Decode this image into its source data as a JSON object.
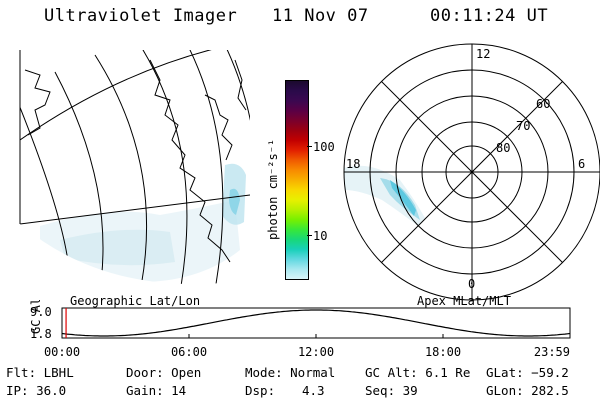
{
  "header": {
    "instrument": "Ultraviolet Imager",
    "date": "11 Nov 07",
    "time": "00:11:24 UT"
  },
  "geo_map": {
    "label": "Geographic Lat/Lon"
  },
  "colorbar": {
    "unit_label": "photon cm⁻²s⁻¹",
    "tick_100": "100",
    "tick_10": "10",
    "colors": [
      "#1b0a2e",
      "#2a0a4a",
      "#3b0850",
      "#5a0045",
      "#7a002c",
      "#9c0010",
      "#c20000",
      "#e22000",
      "#f05a00",
      "#f88a00",
      "#f8b000",
      "#f8d800",
      "#e8f000",
      "#b8f000",
      "#78f000",
      "#38e838",
      "#18d878",
      "#18d0b8",
      "#60d8e0",
      "#a8e8f0",
      "#d8f4f8"
    ]
  },
  "polar": {
    "label": "Apex MLat/MLT",
    "mlt_12": "12",
    "mlt_18": "18",
    "mlt_6": "6",
    "mlt_0": "0",
    "lat_60": "60",
    "lat_70": "70",
    "lat_80": "80"
  },
  "altitude_plot": {
    "ylabel": "GC Alt",
    "y_max": "9.0",
    "y_min": "1.8",
    "x_ticks": [
      "00:00",
      "06:00",
      "12:00",
      "18:00",
      "23:59"
    ],
    "current_time_fraction": 0.008
  },
  "footer": {
    "filter": "Flt: LBHL",
    "ip": "IP: 36.0",
    "door": "Door: Open",
    "gain": "Gain: 14",
    "mode": "Mode: Normal",
    "dsp_label": "Dsp:",
    "dsp_value": "4.3",
    "gc_alt": "GC Alt: 6.1 Re",
    "seq": "Seq: 39",
    "glat": "GLat: −59.2",
    "glon": "GLon: 282.5"
  }
}
